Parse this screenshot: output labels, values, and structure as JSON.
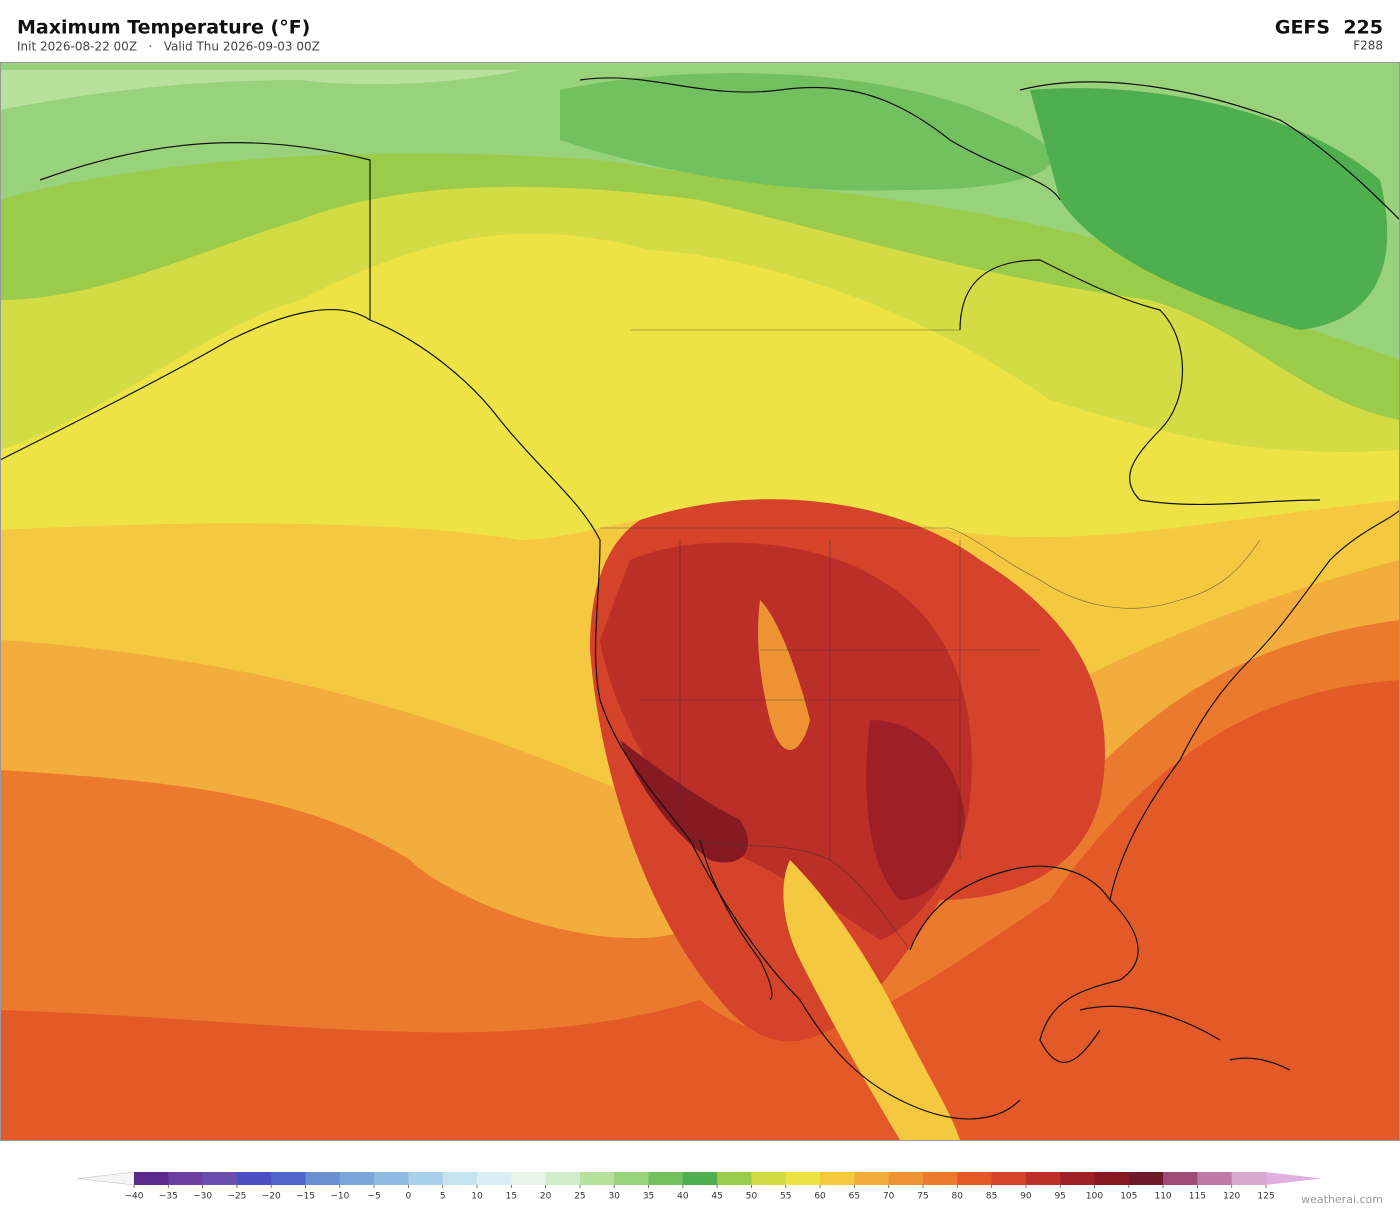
{
  "header": {
    "title": "Maximum Temperature  (°F)",
    "subtitle": "Init 2026-08-22 00Z   ·   Valid Thu 2026-09-03 00Z",
    "model": "GEFS  225",
    "forecast_hour": "F288"
  },
  "colorbar": {
    "ticks": [
      {
        "value": -40,
        "label": "−40"
      },
      {
        "value": -35,
        "label": "−35"
      },
      {
        "value": -30,
        "label": "−30"
      },
      {
        "value": -25,
        "label": "−25"
      },
      {
        "value": -20,
        "label": "−20"
      },
      {
        "value": -15,
        "label": "−15"
      },
      {
        "value": -10,
        "label": "−10"
      },
      {
        "value": -5,
        "label": "−5"
      },
      0,
      5,
      10,
      15,
      20,
      25,
      30,
      35,
      40,
      45,
      50,
      55,
      60,
      65,
      70,
      75,
      80,
      85,
      90,
      95,
      100,
      105,
      110,
      115,
      120,
      125
    ],
    "colors": [
      "#5b2a8f",
      "#6a3fa0",
      "#6b4fb0",
      "#4a4fbf",
      "#4e66c8",
      "#6a8fd0",
      "#7aa5da",
      "#8fbbe2",
      "#a9d0ea",
      "#c4e2f0",
      "#dbeef5",
      "#e6f4ea",
      "#d0ecc8",
      "#b9e19e",
      "#98d27a",
      "#72c05f",
      "#4fae4e",
      "#9bcb4a",
      "#d3dc45",
      "#ede344",
      "#f4c940",
      "#f2ad3c",
      "#ee9334",
      "#eb7a2e",
      "#e35a28",
      "#d4432a",
      "#bc2e28",
      "#9e2026",
      "#861a22",
      "#6f1a28",
      "#a04a78",
      "#c07aa8",
      "#d8a8d0"
    ],
    "under_color": "#f4f4f4",
    "over_color": "#e0b0e0"
  },
  "credit": "weatherai.com"
}
